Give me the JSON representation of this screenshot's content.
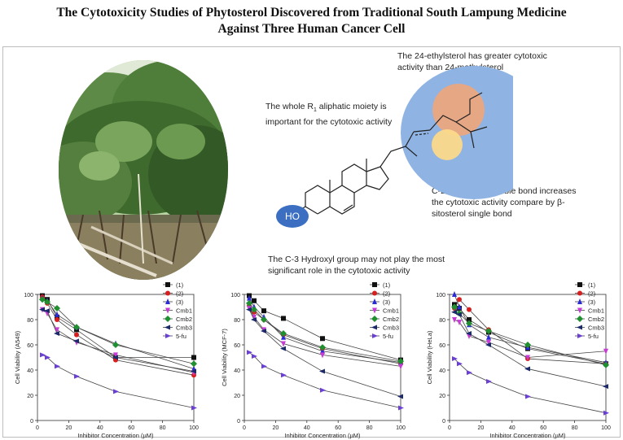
{
  "title_line1": "The Cytotoxicity Studies of Phytosterol Discovered from Traditional South Lampung Medicine",
  "title_line2": "Against Three Human Cancer Cell",
  "annotations": {
    "ethyl": "The 24-ethylsterol has greater cytotoxic activity than 24-methylsterol",
    "r1_pre": "The whole R",
    "r1_sub": "1",
    "r1_post": " aliphatic moiety is important for the cytotoxic activity",
    "double_bond": "C-22 and C-23 double bond increases the cytotoxic activity compare by β-sitosterol single bond",
    "hydroxyl": "The C-3 Hydroxyl group may not play the most significant role in the cytotoxic activity",
    "ho_label": "HO"
  },
  "colors": {
    "blue_ellipse": "#8fb3e3",
    "ho_ellipse": "#3c6fc2",
    "orange_circle": "#f0a57a",
    "yellow_circle": "#fcd98a"
  },
  "legend_labels": [
    "(1)",
    "(2)",
    "(3)",
    "Cmb1",
    "Cmb2",
    "Cmb3",
    "5-fu"
  ],
  "chart_data": [
    {
      "type": "line",
      "xlabel": "Inhibitor Concentration (µM)",
      "ylabel": "Cell Viability (A549)",
      "xlim": [
        0,
        100
      ],
      "ylim": [
        0,
        100
      ],
      "x": [
        3.125,
        6.25,
        12.5,
        25,
        50,
        100
      ],
      "series": [
        {
          "name": "(1)",
          "color": "#111111",
          "marker": "square",
          "values": [
            99,
            96,
            82,
            72,
            50,
            50
          ]
        },
        {
          "name": "(2)",
          "color": "#d81e1e",
          "marker": "circle",
          "values": [
            98,
            93,
            80,
            68,
            48,
            36
          ]
        },
        {
          "name": "(3)",
          "color": "#2b2bd6",
          "marker": "triangle-up",
          "values": [
            97,
            95,
            84,
            74,
            61,
            41
          ]
        },
        {
          "name": "Cmb1",
          "color": "#c93bd6",
          "marker": "triangle-down",
          "values": [
            88,
            85,
            72,
            62,
            52,
            38
          ]
        },
        {
          "name": "Cmb2",
          "color": "#1f8f2f",
          "marker": "diamond",
          "values": [
            96,
            94,
            89,
            74,
            60,
            45
          ]
        },
        {
          "name": "Cmb3",
          "color": "#1a2a6c",
          "marker": "triangle-left",
          "values": [
            88,
            87,
            69,
            63,
            50,
            39
          ]
        },
        {
          "name": "5-fu",
          "color": "#6b3fd6",
          "marker": "triangle-right",
          "values": [
            52,
            50,
            43,
            35,
            23,
            10
          ]
        }
      ]
    },
    {
      "type": "line",
      "xlabel": "Inhibitor Concentration (µM)",
      "ylabel": "Cell Viability (MCF-7)",
      "xlim": [
        0,
        100
      ],
      "ylim": [
        0,
        100
      ],
      "x": [
        3.125,
        6.25,
        12.5,
        25,
        50,
        100
      ],
      "series": [
        {
          "name": "(1)",
          "color": "#111111",
          "marker": "square",
          "values": [
            99,
            95,
            87,
            81,
            65,
            48
          ]
        },
        {
          "name": "(2)",
          "color": "#d81e1e",
          "marker": "circle",
          "values": [
            91,
            86,
            80,
            68,
            57,
            45
          ]
        },
        {
          "name": "(3)",
          "color": "#2b2bd6",
          "marker": "triangle-up",
          "values": [
            97,
            90,
            82,
            66,
            55,
            46
          ]
        },
        {
          "name": "Cmb1",
          "color": "#c93bd6",
          "marker": "triangle-down",
          "values": [
            89,
            82,
            72,
            61,
            52,
            43
          ]
        },
        {
          "name": "Cmb2",
          "color": "#1f8f2f",
          "marker": "diamond",
          "values": [
            93,
            88,
            80,
            69,
            58,
            47
          ]
        },
        {
          "name": "Cmb3",
          "color": "#1a2a6c",
          "marker": "triangle-left",
          "values": [
            88,
            80,
            71,
            57,
            39,
            19
          ]
        },
        {
          "name": "5-fu",
          "color": "#6b3fd6",
          "marker": "triangle-right",
          "values": [
            54,
            51,
            43,
            36,
            24,
            10
          ]
        }
      ]
    },
    {
      "type": "line",
      "xlabel": "Inhibitor Concentration (µM)",
      "ylabel": "Cell Viability (HeLa)",
      "xlim": [
        0,
        100
      ],
      "ylim": [
        0,
        100
      ],
      "x": [
        3.125,
        6.25,
        12.5,
        25,
        50,
        100
      ],
      "series": [
        {
          "name": "(1)",
          "color": "#111111",
          "marker": "square",
          "values": [
            92,
            89,
            80,
            70,
            57,
            45
          ]
        },
        {
          "name": "(2)",
          "color": "#d81e1e",
          "marker": "circle",
          "values": [
            89,
            96,
            88,
            72,
            49,
            45
          ]
        },
        {
          "name": "(3)",
          "color": "#2b2bd6",
          "marker": "triangle-up",
          "values": [
            100,
            90,
            76,
            66,
            58,
            46
          ]
        },
        {
          "name": "Cmb1",
          "color": "#c93bd6",
          "marker": "triangle-down",
          "values": [
            80,
            78,
            67,
            62,
            50,
            55
          ]
        },
        {
          "name": "Cmb2",
          "color": "#1f8f2f",
          "marker": "diamond",
          "values": [
            90,
            85,
            77,
            71,
            60,
            44
          ]
        },
        {
          "name": "Cmb3",
          "color": "#1a2a6c",
          "marker": "triangle-left",
          "values": [
            86,
            84,
            69,
            60,
            41,
            27
          ]
        },
        {
          "name": "5-fu",
          "color": "#6b3fd6",
          "marker": "triangle-right",
          "values": [
            49,
            45,
            38,
            31,
            19,
            6
          ]
        }
      ]
    }
  ]
}
